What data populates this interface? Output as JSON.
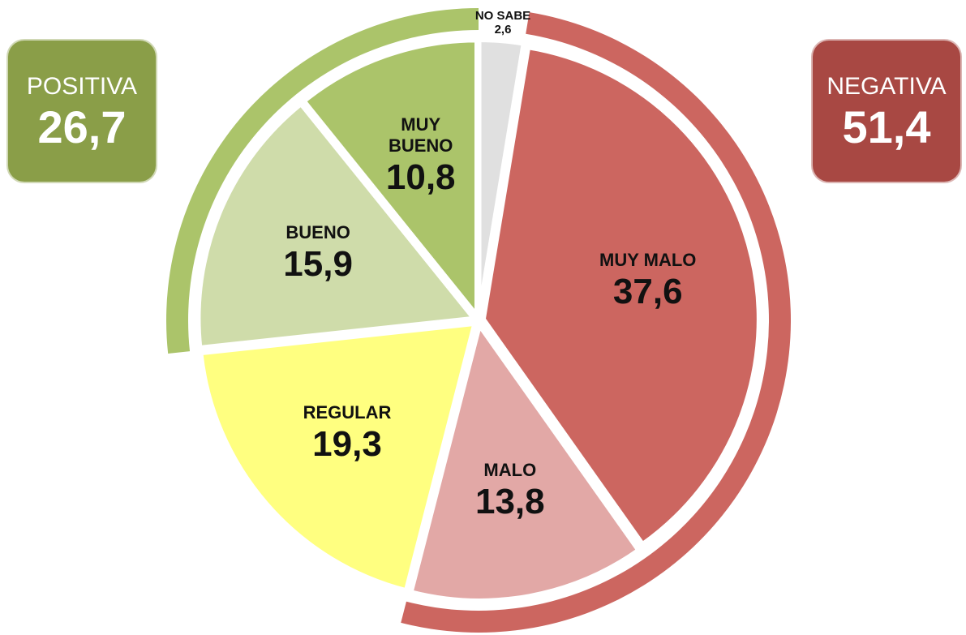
{
  "chart_data": {
    "type": "pie",
    "categories": [
      "NO SABE",
      "MUY MALO",
      "MALO",
      "REGULAR",
      "BUENO",
      "MUY BUENO"
    ],
    "values": [
      2.6,
      37.6,
      13.8,
      19.3,
      15.9,
      10.8
    ],
    "value_labels": [
      "2,6",
      "37,6",
      "13,8",
      "19,3",
      "15,9",
      "10,8"
    ],
    "colors": [
      "#e0e0e0",
      "#cc6660",
      "#e2a8a6",
      "#ffff80",
      "#cfdcaa",
      "#abc46a"
    ],
    "summaries": [
      {
        "label": "POSITIVA",
        "value": 26.7,
        "value_label": "26,7",
        "color": "#8a9e48",
        "arc_color": "#abc46a"
      },
      {
        "label": "NEGATIVA",
        "value": 51.4,
        "value_label": "51,4",
        "color": "#a84843",
        "arc_color": "#cc6660"
      }
    ]
  }
}
